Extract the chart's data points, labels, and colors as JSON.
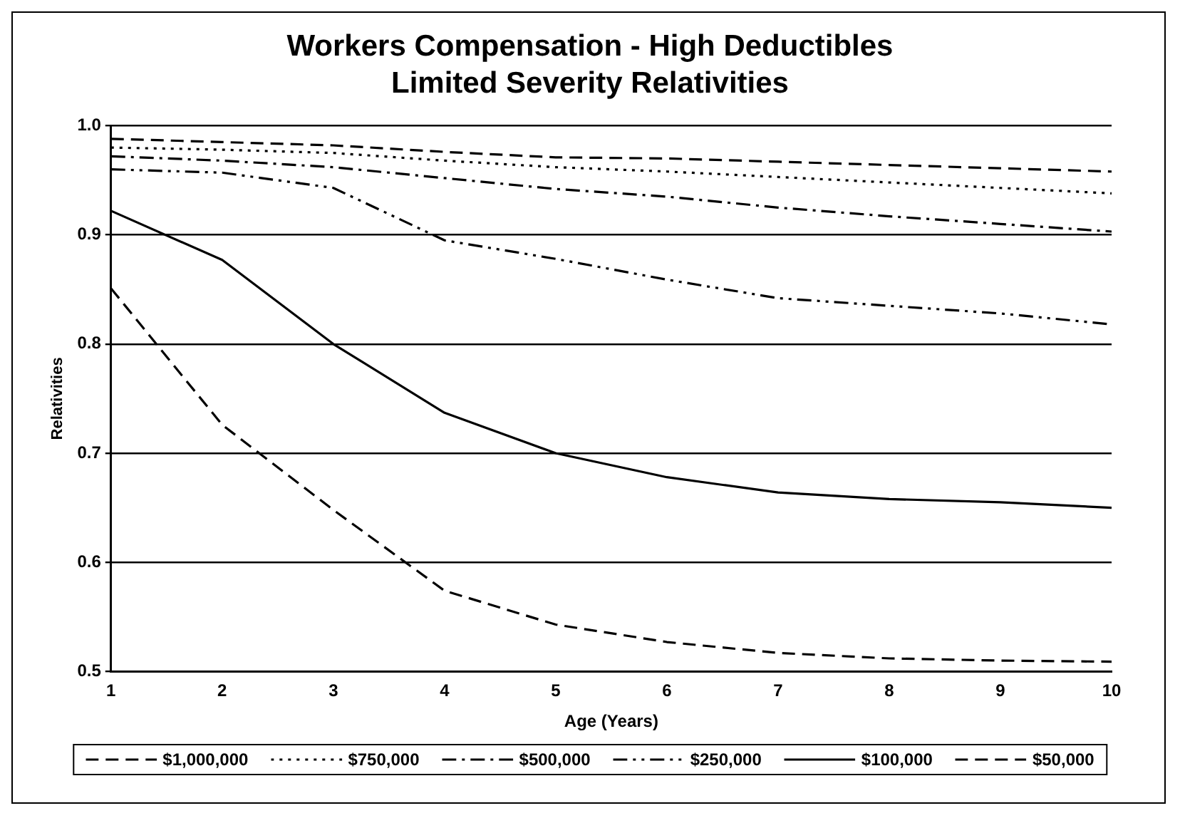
{
  "chart_data": {
    "type": "line",
    "title": "Workers Compensation - High Deductibles",
    "subtitle": "Limited Severity Relativities",
    "xlabel": "Age (Years)",
    "ylabel": "Relativities",
    "x": [
      1,
      2,
      3,
      4,
      5,
      6,
      7,
      8,
      9,
      10
    ],
    "xlim": [
      1,
      10
    ],
    "xticks": [
      1,
      2,
      3,
      4,
      5,
      6,
      7,
      8,
      9,
      10
    ],
    "ylim": [
      0.5,
      1.0
    ],
    "yticks": [
      {
        "value": 0.5,
        "label": "0.5"
      },
      {
        "value": 0.6,
        "label": "0.6"
      },
      {
        "value": 0.7,
        "label": "0.7"
      },
      {
        "value": 0.8,
        "label": "0.8"
      },
      {
        "value": 0.9,
        "label": "0.9"
      },
      {
        "value": 1.0,
        "label": "1.0"
      }
    ],
    "grid": "y",
    "legend": "bottom",
    "marker": "none",
    "series": [
      {
        "name": "$1,000,000",
        "color": "#000000",
        "line_style": "dashed",
        "values": [
          0.988,
          0.985,
          0.982,
          0.976,
          0.971,
          0.97,
          0.967,
          0.964,
          0.961,
          0.958
        ]
      },
      {
        "name": "$750,000",
        "color": "#000000",
        "line_style": "dotted",
        "values": [
          0.98,
          0.978,
          0.975,
          0.968,
          0.962,
          0.958,
          0.953,
          0.948,
          0.943,
          0.938
        ]
      },
      {
        "name": "$500,000",
        "color": "#000000",
        "line_style": "dashdot",
        "values": [
          0.972,
          0.968,
          0.962,
          0.952,
          0.942,
          0.935,
          0.925,
          0.917,
          0.91,
          0.903
        ]
      },
      {
        "name": "$250,000",
        "color": "#000000",
        "line_style": "dashdotdot",
        "values": [
          0.96,
          0.957,
          0.943,
          0.895,
          0.878,
          0.859,
          0.842,
          0.835,
          0.828,
          0.818
        ]
      },
      {
        "name": "$100,000",
        "color": "#000000",
        "line_style": "solid",
        "values": [
          0.922,
          0.877,
          0.8,
          0.737,
          0.7,
          0.678,
          0.664,
          0.658,
          0.655,
          0.65
        ]
      },
      {
        "name": "$50,000",
        "color": "#000000",
        "line_style": "dashed",
        "values": [
          0.851,
          0.726,
          0.648,
          0.574,
          0.543,
          0.527,
          0.517,
          0.512,
          0.51,
          0.509
        ]
      }
    ]
  }
}
